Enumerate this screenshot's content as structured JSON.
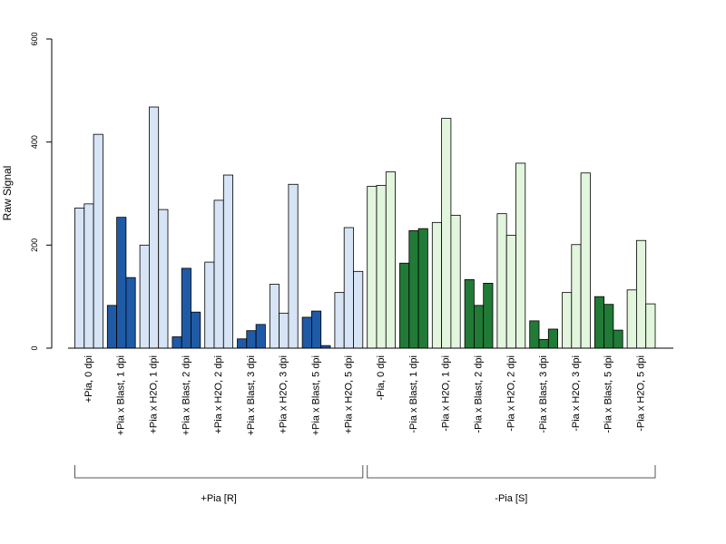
{
  "chart_data": {
    "type": "bar",
    "title": "",
    "xlabel": "",
    "ylabel": "Raw Signal",
    "ylim": [
      0,
      600
    ],
    "yticks": [
      0,
      200,
      400,
      600
    ],
    "grid": false,
    "legend": "none",
    "colors": {
      "pos_h2o": "#d6e4f5",
      "pos_blast": "#1f5aa6",
      "neg_h2o": "#e2f5dd",
      "neg_blast": "#217a36",
      "axis": "#000000",
      "bar_stroke": "#000000"
    },
    "categories": [
      "+Pia, 0 dpi",
      "+Pia x Blast, 1 dpi",
      "+Pia x H2O, 1 dpi",
      "+Pia x Blast, 2 dpi",
      "+Pia x H2O, 2 dpi",
      "+Pia x Blast, 3 dpi",
      "+Pia x H2O, 3 dpi",
      "+Pia x Blast, 5 dpi",
      "+Pia x H2O, 5 dpi",
      "-Pia, 0 dpi",
      "-Pia x Blast, 1 dpi",
      "-Pia x H2O, 1 dpi",
      "-Pia x Blast, 2 dpi",
      "-Pia x H2O, 2 dpi",
      "-Pia x Blast, 3 dpi",
      "-Pia x H2O, 3 dpi",
      "-Pia x Blast, 5 dpi",
      "-Pia x H2O, 5 dpi"
    ],
    "category_color_keys": [
      "pos_h2o",
      "pos_blast",
      "pos_h2o",
      "pos_blast",
      "pos_h2o",
      "pos_blast",
      "pos_h2o",
      "pos_blast",
      "pos_h2o",
      "neg_h2o",
      "neg_blast",
      "neg_h2o",
      "neg_blast",
      "neg_h2o",
      "neg_blast",
      "neg_h2o",
      "neg_blast",
      "neg_h2o"
    ],
    "values": [
      [
        272,
        280,
        415
      ],
      [
        83,
        254,
        137
      ],
      [
        200,
        468,
        269
      ],
      [
        22,
        155,
        70
      ],
      [
        167,
        287,
        336
      ],
      [
        18,
        34,
        46
      ],
      [
        124,
        68,
        318
      ],
      [
        60,
        72,
        5
      ],
      [
        108,
        234,
        149
      ],
      [
        314,
        316,
        342
      ],
      [
        165,
        228,
        232
      ],
      [
        244,
        446,
        258
      ],
      [
        133,
        83,
        126
      ],
      [
        261,
        219,
        359
      ],
      [
        53,
        17,
        37
      ],
      [
        108,
        201,
        340
      ],
      [
        100,
        85,
        35
      ],
      [
        113,
        209,
        86
      ]
    ],
    "groups": [
      {
        "label": "+Pia [R]",
        "start": 0,
        "end": 8
      },
      {
        "label": "-Pia [S]",
        "start": 9,
        "end": 17
      }
    ]
  }
}
